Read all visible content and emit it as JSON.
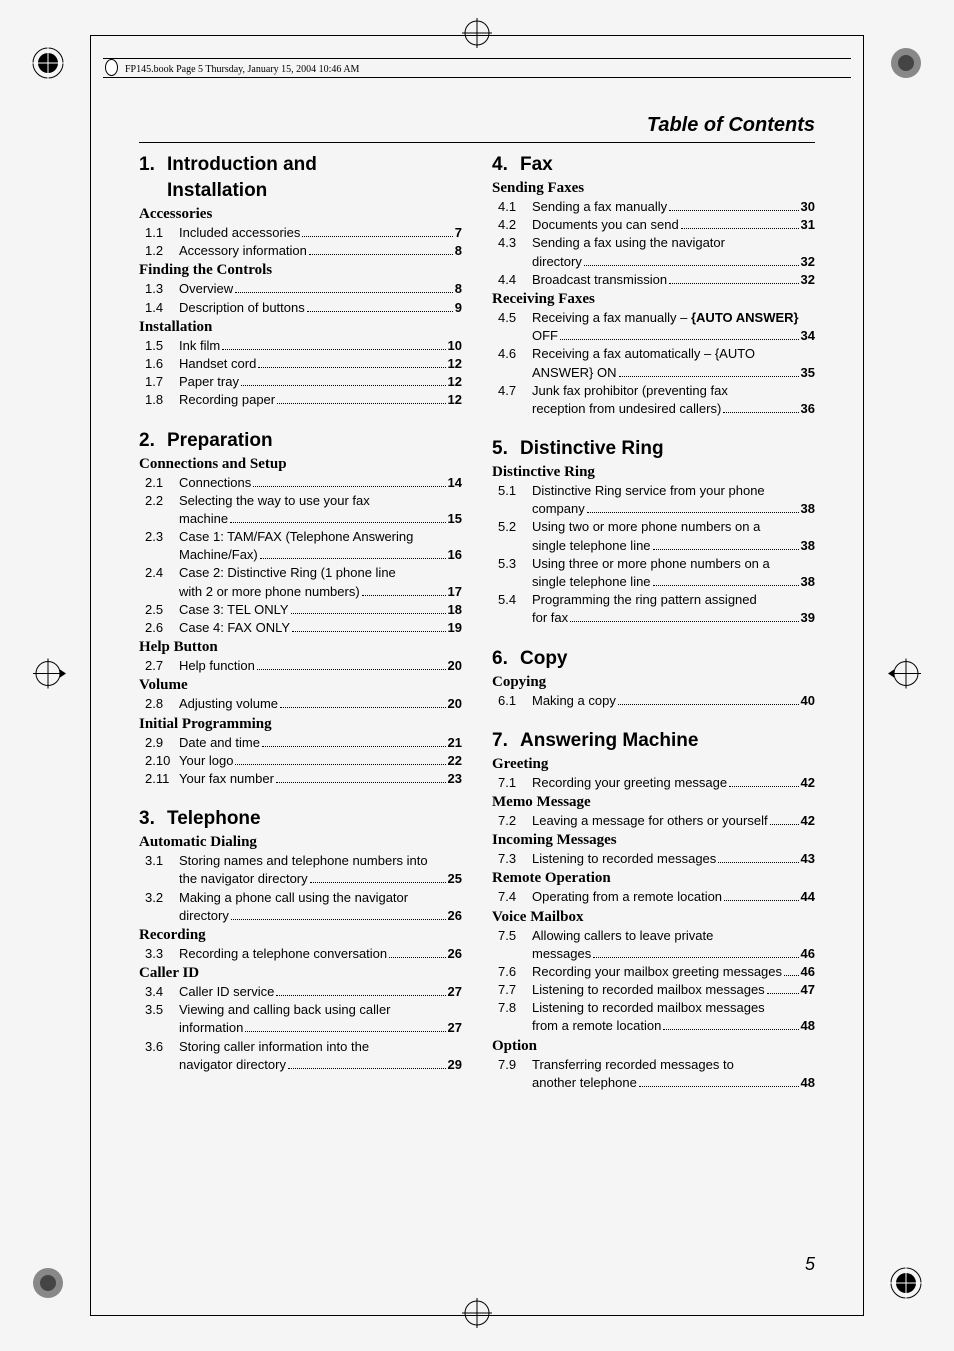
{
  "bookHeader": "FP145.book  Page 5  Thursday, January 15, 2004  10:46 AM",
  "tocHeader": "Table of Contents",
  "pageNumber": "5",
  "leftColumn": {
    "chapters": [
      {
        "num": "1.",
        "title": "Introduction and Installation",
        "sections": [
          {
            "heading": "Accessories",
            "entries": [
              {
                "num": "1.1",
                "text": "Included accessories",
                "page": "7"
              },
              {
                "num": "1.2",
                "text": "Accessory information",
                "page": "8"
              }
            ]
          },
          {
            "heading": "Finding the Controls",
            "entries": [
              {
                "num": "1.3",
                "text": "Overview",
                "page": "8"
              },
              {
                "num": "1.4",
                "text": "Description of buttons",
                "page": "9"
              }
            ]
          },
          {
            "heading": "Installation",
            "entries": [
              {
                "num": "1.5",
                "text": "Ink film",
                "page": "10"
              },
              {
                "num": "1.6",
                "text": "Handset cord",
                "page": "12"
              },
              {
                "num": "1.7",
                "text": "Paper tray",
                "page": "12"
              },
              {
                "num": "1.8",
                "text": "Recording paper",
                "page": "12"
              }
            ]
          }
        ]
      },
      {
        "num": "2.",
        "title": "Preparation",
        "sections": [
          {
            "heading": "Connections and Setup",
            "entries": [
              {
                "num": "2.1",
                "text": "Connections",
                "page": "14"
              },
              {
                "num": "2.2",
                "text": "Selecting the way to use your fax machine",
                "page": "15"
              },
              {
                "num": "2.3",
                "text": "Case 1: TAM/FAX (Telephone Answering Machine/Fax)",
                "page": "16"
              },
              {
                "num": "2.4",
                "text": "Case 2: Distinctive Ring (1 phone line with 2 or more phone numbers)",
                "page": "17"
              },
              {
                "num": "2.5",
                "text": "Case 3: TEL ONLY",
                "page": "18"
              },
              {
                "num": "2.6",
                "text": "Case 4: FAX ONLY",
                "page": "19"
              }
            ]
          },
          {
            "heading": "Help Button",
            "entries": [
              {
                "num": "2.7",
                "text": "Help function",
                "page": "20"
              }
            ]
          },
          {
            "heading": "Volume",
            "entries": [
              {
                "num": "2.8",
                "text": "Adjusting volume",
                "page": "20"
              }
            ]
          },
          {
            "heading": "Initial Programming",
            "entries": [
              {
                "num": "2.9",
                "text": "Date and time",
                "page": "21"
              },
              {
                "num": "2.10",
                "text": "Your logo",
                "page": "22"
              },
              {
                "num": "2.11",
                "text": "Your fax number",
                "page": "23"
              }
            ]
          }
        ]
      },
      {
        "num": "3.",
        "title": "Telephone",
        "sections": [
          {
            "heading": "Automatic Dialing",
            "entries": [
              {
                "num": "3.1",
                "text": "Storing names and telephone numbers into the navigator directory",
                "page": "25"
              },
              {
                "num": "3.2",
                "text": "Making a phone call using the navigator directory",
                "page": "26"
              }
            ]
          },
          {
            "heading": "Recording",
            "entries": [
              {
                "num": "3.3",
                "text": "Recording a telephone conversation",
                "page": "26",
                "tight": true
              }
            ]
          },
          {
            "heading": "Caller ID",
            "entries": [
              {
                "num": "3.4",
                "text": "Caller ID service",
                "page": "27"
              },
              {
                "num": "3.5",
                "text": "Viewing and calling back using caller information",
                "page": "27"
              },
              {
                "num": "3.6",
                "text": "Storing caller information into the navigator directory",
                "page": "29"
              }
            ]
          }
        ]
      }
    ]
  },
  "rightColumn": {
    "chapters": [
      {
        "num": "4.",
        "title": "Fax",
        "sections": [
          {
            "heading": "Sending Faxes",
            "entries": [
              {
                "num": "4.1",
                "text": "Sending a fax manually",
                "page": "30"
              },
              {
                "num": "4.2",
                "text": "Documents you can send",
                "page": "31"
              },
              {
                "num": "4.3",
                "text": "Sending a fax using the navigator directory",
                "page": "32"
              },
              {
                "num": "4.4",
                "text": "Broadcast transmission",
                "page": "32"
              }
            ]
          },
          {
            "heading": "Receiving Faxes",
            "entries": [
              {
                "num": "4.5",
                "text": "Receiving a fax manually – {AUTO ANSWER} OFF",
                "page": "34"
              },
              {
                "num": "4.6",
                "text": "Receiving a fax automatically – {AUTO ANSWER} ON",
                "page": "35"
              },
              {
                "num": "4.7",
                "text": "Junk fax prohibitor (preventing fax reception from undesired callers)",
                "page": "36"
              }
            ]
          }
        ]
      },
      {
        "num": "5.",
        "title": "Distinctive Ring",
        "sections": [
          {
            "heading": "Distinctive Ring",
            "entries": [
              {
                "num": "5.1",
                "text": "Distinctive Ring service from your phone company",
                "page": "38"
              },
              {
                "num": "5.2",
                "text": "Using two or more phone numbers on a single telephone line",
                "page": "38"
              },
              {
                "num": "5.3",
                "text": "Using three or more phone numbers on a single telephone line",
                "page": "38"
              },
              {
                "num": "5.4",
                "text": "Programming the ring pattern assigned for fax",
                "page": "39"
              }
            ]
          }
        ]
      },
      {
        "num": "6.",
        "title": "Copy",
        "sections": [
          {
            "heading": "Copying",
            "entries": [
              {
                "num": "6.1",
                "text": "Making a copy",
                "page": "40"
              }
            ]
          }
        ]
      },
      {
        "num": "7.",
        "title": "Answering Machine",
        "sections": [
          {
            "heading": "Greeting",
            "entries": [
              {
                "num": "7.1",
                "text": "Recording your greeting message",
                "page": "42",
                "tight": true
              }
            ]
          },
          {
            "heading": "Memo Message",
            "entries": [
              {
                "num": "7.2",
                "text": "Leaving a message for others or yourself",
                "page": "42"
              }
            ]
          },
          {
            "heading": "Incoming Messages",
            "entries": [
              {
                "num": "7.3",
                "text": "Listening to recorded messages",
                "page": "43"
              }
            ]
          },
          {
            "heading": "Remote Operation",
            "entries": [
              {
                "num": "7.4",
                "text": "Operating from a remote location",
                "page": "44"
              }
            ]
          },
          {
            "heading": "Voice Mailbox",
            "entries": [
              {
                "num": "7.5",
                "text": "Allowing callers to leave private messages",
                "page": "46"
              },
              {
                "num": "7.6",
                "text": "Recording your mailbox greeting messages",
                "page": "46"
              },
              {
                "num": "7.7",
                "text": "Listening to recorded mailbox messages",
                "page": "47"
              },
              {
                "num": "7.8",
                "text": "Listening to recorded mailbox messages from a remote location",
                "page": "48"
              }
            ]
          },
          {
            "heading": "Option",
            "entries": [
              {
                "num": "7.9",
                "text": "Transferring recorded messages to another telephone",
                "page": "48"
              }
            ]
          }
        ]
      }
    ]
  }
}
